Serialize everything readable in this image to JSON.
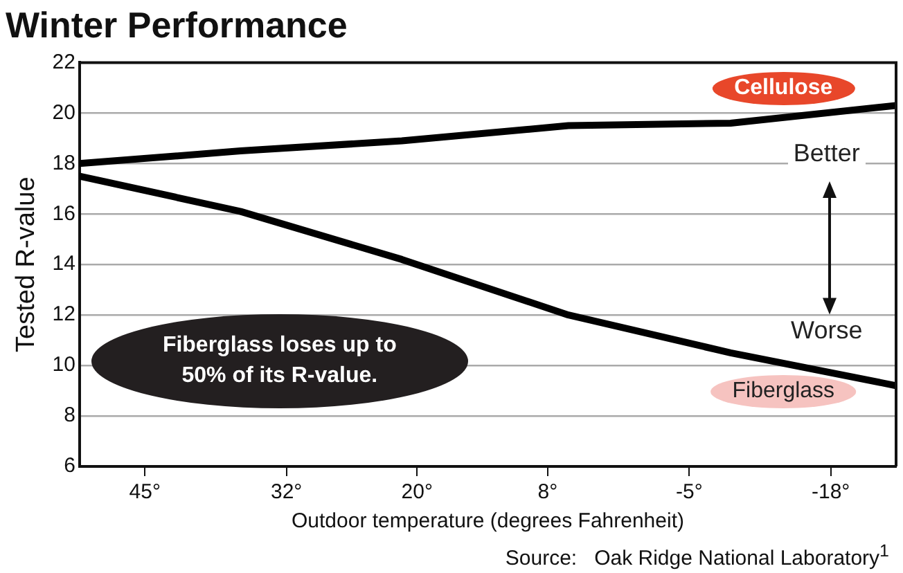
{
  "chart_data": {
    "type": "line",
    "title": "Winter Performance",
    "xlabel": "Outdoor temperature (degrees Fahrenheit)",
    "ylabel": "Tested R-value",
    "series": [
      {
        "name": "Cellulose",
        "color": "#000000",
        "x": [
          51,
          36.2,
          21.4,
          6.1,
          -8.8,
          -24
        ],
        "values": [
          18.0,
          18.5,
          18.9,
          19.5,
          19.6,
          20.3
        ]
      },
      {
        "name": "Fiberglass",
        "color": "#000000",
        "x": [
          51,
          36.2,
          21.4,
          6.1,
          -8.8,
          -24
        ],
        "values": [
          17.5,
          16.1,
          14.2,
          12.0,
          10.5,
          9.2
        ]
      }
    ],
    "xlim": [
      51,
      -24
    ],
    "xticks": [
      {
        "value": 45,
        "label": "45°"
      },
      {
        "value": 32,
        "label": "32°"
      },
      {
        "value": 20,
        "label": "20°"
      },
      {
        "value": 8,
        "label": "8°"
      },
      {
        "value": -5,
        "label": "-5°"
      },
      {
        "value": -18,
        "label": "-18°"
      }
    ],
    "ylim": [
      6,
      22
    ],
    "yticks": [
      6,
      8,
      10,
      12,
      14,
      16,
      18,
      20,
      22
    ],
    "grid": "y",
    "legend": false,
    "marker": "none",
    "line_style": "solid",
    "annotations": [
      "Fiberglass loses up to 50% of its R-value.",
      "Better",
      "Worse",
      "Source:   Oak Ridge National Laboratory$^{1}$"
    ]
  }
}
